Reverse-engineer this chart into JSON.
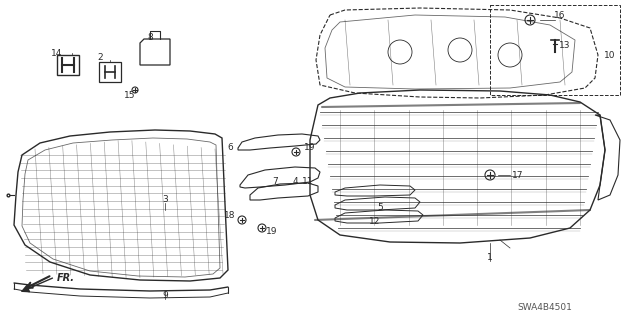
{
  "bg_color": "#ffffff",
  "line_color": "#2a2a2a",
  "diagram_code": "SWA4B4501",
  "fig_w": 6.4,
  "fig_h": 3.19,
  "dpi": 100
}
